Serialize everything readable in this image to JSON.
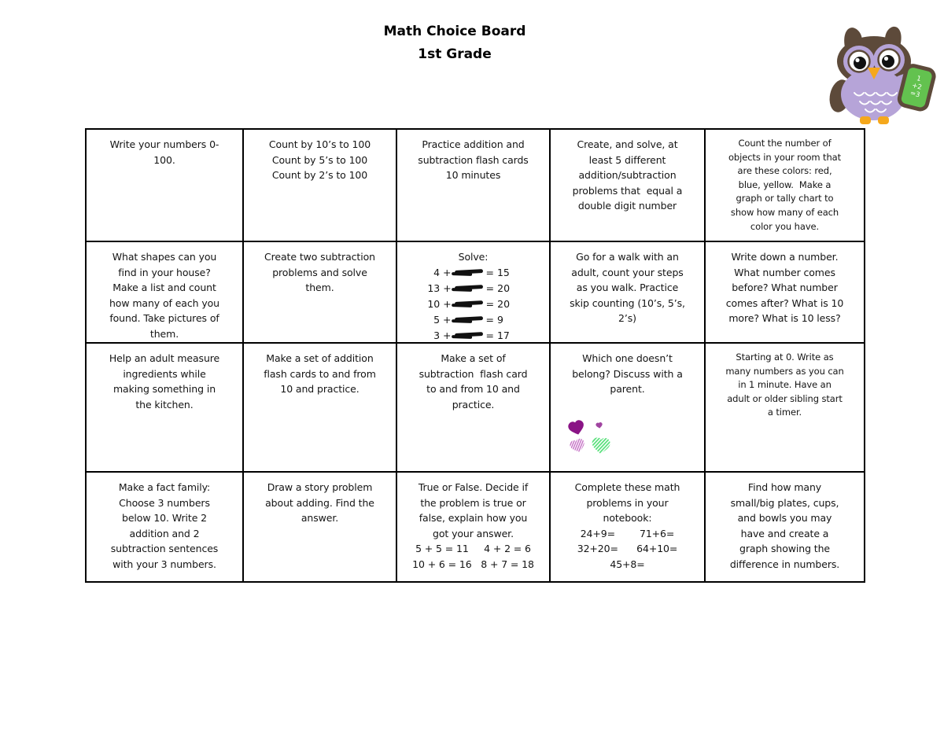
{
  "title": {
    "line1": "Math Choice Board",
    "line2": "1st Grade"
  },
  "owl": {
    "description": "purple owl mascot holding a green chalkboard",
    "board_text": [
      "1",
      "+2",
      "=3"
    ],
    "colors": {
      "body": "#b6a4d8",
      "head": "#5d4a3a",
      "beak_feet": "#f5a81c",
      "chalkboard": "#63c24f"
    }
  },
  "hearts": {
    "description": "which one doesn't belong hearts clipart",
    "colors": {
      "solid": "#8a1486",
      "small": "#a044a0",
      "striped_pink": "#c46ec4",
      "striped_green": "#57e07a"
    }
  },
  "board": {
    "rows": [
      {
        "cells": [
          {
            "lines": [
              "Write your numbers 0-",
              "100."
            ]
          },
          {
            "lines": [
              "Count by 10’s to 100",
              "Count by 5’s to 100",
              "Count by 2’s to 100"
            ]
          },
          {
            "lines": [
              "Practice addition and",
              "subtraction flash cards",
              "10 minutes"
            ]
          },
          {
            "lines": [
              "Create, and solve, at",
              "least 5 different",
              "addition/subtraction",
              "problems that  equal a",
              "double digit number"
            ]
          },
          {
            "lines": [
              "Count the number of",
              "objects in your room that",
              "are these colors: red,",
              "blue, yellow.  Make a",
              "graph or tally chart to",
              "show how many of each",
              "color you have."
            ]
          }
        ]
      },
      {
        "cells": [
          {
            "lines": [
              "What shapes can you",
              "find in your house?",
              "Make a list and count",
              "how many of each you",
              "found. Take pictures of",
              "them."
            ]
          },
          {
            "lines": [
              "Create two subtraction",
              "problems and solve",
              "them."
            ]
          },
          {
            "type": "solve",
            "heading": "Solve:",
            "equations": [
              {
                "left": "4 +",
                "right": "= 15"
              },
              {
                "left": "13 +",
                "right": "= 20"
              },
              {
                "left": "10 +",
                "right": "= 20"
              },
              {
                "left": "5 +",
                "right": "= 9"
              },
              {
                "left": "3 +",
                "right": "= 17"
              }
            ]
          },
          {
            "lines": [
              "Go for a walk with an",
              "adult, count your steps",
              "as you walk. Practice",
              "skip counting (10’s, 5’s,",
              "2’s)"
            ]
          },
          {
            "lines": [
              "Write down a number.",
              "What number comes",
              "before? What number",
              "comes after? What is 10",
              "more? What is 10 less?"
            ]
          }
        ]
      },
      {
        "cells": [
          {
            "lines": [
              "Help an adult measure",
              "ingredients while",
              "making something in",
              "the kitchen."
            ]
          },
          {
            "lines": [
              "Make a set of addition",
              "flash cards to and from",
              "10 and practice."
            ]
          },
          {
            "lines": [
              "Make a set of",
              "subtraction  flash card",
              "to and from 10 and",
              "practice."
            ]
          },
          {
            "type": "hearts",
            "lines": [
              "Which one doesn’t",
              "belong? Discuss with a",
              "parent."
            ]
          },
          {
            "lines": [
              "Starting at 0. Write as",
              "many numbers as you can",
              "in 1 minute. Have an",
              "adult or older sibling start",
              "a timer."
            ]
          }
        ]
      },
      {
        "cells": [
          {
            "lines": [
              "Make a fact family:",
              "Choose 3 numbers",
              "below 10. Write 2",
              "addition and 2",
              "subtraction sentences",
              "with your 3 numbers."
            ]
          },
          {
            "lines": [
              "Draw a story problem",
              "about adding. Find the",
              "answer."
            ]
          },
          {
            "lines": [
              "True or False. Decide if",
              "the problem is true or",
              "false, explain how you",
              "got your answer.",
              "5 + 5 = 11     4 + 2 = 6",
              "10 + 6 = 16   8 + 7 = 18"
            ]
          },
          {
            "lines": [
              "Complete these math",
              "problems in your",
              "notebook:",
              "24+9=        71+6=",
              "32+20=      64+10=",
              "45+8="
            ]
          },
          {
            "lines": [
              "Find how many",
              "small/big plates, cups,",
              "and bowls you may",
              "have and create a",
              "graph showing the",
              "difference in numbers."
            ]
          }
        ]
      }
    ]
  }
}
